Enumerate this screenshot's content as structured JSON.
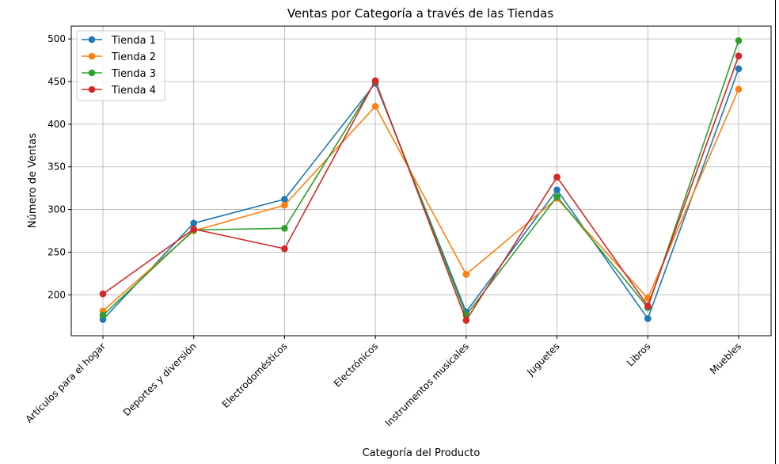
{
  "chart_data": {
    "type": "line",
    "title": "Ventas por Categoría a través de las Tiendas",
    "xlabel": "Categoría del Producto",
    "ylabel": "Número de Ventas",
    "categories": [
      "Artículos para el hogar",
      "Deportes y diversión",
      "Electrodomésticos",
      "Electrónicos",
      "Instrumentos musicales",
      "Juguetes",
      "Libros",
      "Muebles"
    ],
    "ylim": [
      152,
      515
    ],
    "yticks": [
      200,
      250,
      300,
      350,
      400,
      450,
      500
    ],
    "grid": true,
    "legend": "top-left",
    "series": [
      {
        "name": "Tienda 1",
        "color": "#1f77b4",
        "values": [
          171,
          284,
          312,
          448,
          180,
          323,
          172,
          465
        ]
      },
      {
        "name": "Tienda 2",
        "color": "#ff7f0e",
        "values": [
          181,
          275,
          305,
          421,
          224,
          313,
          196,
          441
        ]
      },
      {
        "name": "Tienda 3",
        "color": "#2ca02c",
        "values": [
          176,
          276,
          278,
          450,
          176,
          315,
          185,
          498
        ]
      },
      {
        "name": "Tienda 4",
        "color": "#d62728",
        "values": [
          201,
          277,
          254,
          451,
          170,
          338,
          187,
          480
        ]
      }
    ]
  }
}
